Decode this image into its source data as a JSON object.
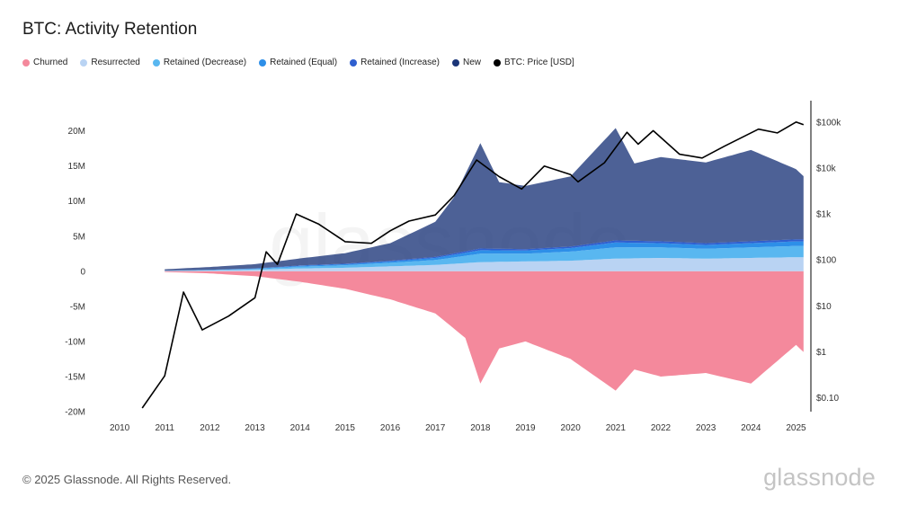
{
  "title": "BTC: Activity Retention",
  "footer": {
    "copyright": "© 2025 Glassnode. All Rights Reserved.",
    "logo": "glassnode",
    "watermark": "glassnode"
  },
  "legend": [
    {
      "label": "Churned",
      "color": "#f4899c"
    },
    {
      "label": "Resurrected",
      "color": "#b9d3f3"
    },
    {
      "label": "Retained (Decrease)",
      "color": "#59b7f0"
    },
    {
      "label": "Retained (Equal)",
      "color": "#2d8fe8"
    },
    {
      "label": "Retained (Increase)",
      "color": "#2f5fcf"
    },
    {
      "label": "New",
      "color": "#1b3578"
    },
    {
      "label": "BTC: Price [USD]",
      "color": "#000000"
    }
  ],
  "chart_data": {
    "type": "area",
    "x_ticks": [
      "2010",
      "2011",
      "2012",
      "2013",
      "2014",
      "2015",
      "2016",
      "2017",
      "2018",
      "2019",
      "2020",
      "2021",
      "2022",
      "2023",
      "2024",
      "2025"
    ],
    "y_left": {
      "ticks": [
        "20M",
        "15M",
        "10M",
        "5M",
        "0",
        "-5M",
        "-10M",
        "-15M",
        "-20M"
      ],
      "range": [
        -20000000,
        22000000
      ]
    },
    "y_right": {
      "scale": "log",
      "ticks": [
        "$100k",
        "$10k",
        "$1k",
        "$100",
        "$10",
        "$1",
        "$0.10"
      ],
      "range": [
        0.05,
        130000
      ]
    },
    "x_range": [
      "2009-07-01",
      "2025-04-01"
    ],
    "series": [
      {
        "name": "Churned",
        "color": "#f4899c",
        "x": [
          "2011-01",
          "2012-01",
          "2013-01",
          "2014-01",
          "2015-01",
          "2016-01",
          "2017-01",
          "2017-09",
          "2018-01",
          "2018-06",
          "2019-01",
          "2020-01",
          "2021-01",
          "2021-06",
          "2022-01",
          "2023-01",
          "2024-01",
          "2025-01",
          "2025-03"
        ],
        "values": [
          -100000,
          -300000,
          -700000,
          -1500000,
          -2500000,
          -4000000,
          -6000000,
          -9500000,
          -16000000,
          -11000000,
          -10000000,
          -12500000,
          -17000000,
          -14000000,
          -15000000,
          -14500000,
          -16000000,
          -10500000,
          -11500000
        ]
      },
      {
        "name": "Resurrected",
        "color": "#b9d3f3",
        "x": [
          "2011-01",
          "2012-01",
          "2013-01",
          "2014-01",
          "2015-01",
          "2016-01",
          "2017-01",
          "2018-01",
          "2019-01",
          "2020-01",
          "2021-01",
          "2022-01",
          "2023-01",
          "2024-01",
          "2025-01",
          "2025-03"
        ],
        "values": [
          50000,
          100000,
          200000,
          400000,
          500000,
          700000,
          900000,
          1300000,
          1400000,
          1500000,
          1800000,
          1900000,
          1800000,
          1900000,
          2000000,
          2000000
        ]
      },
      {
        "name": "Retained (Decrease)",
        "color": "#59b7f0",
        "x": [
          "2011-01",
          "2012-01",
          "2013-01",
          "2014-01",
          "2015-01",
          "2016-01",
          "2017-01",
          "2018-01",
          "2019-01",
          "2020-01",
          "2021-01",
          "2022-01",
          "2023-01",
          "2024-01",
          "2025-01",
          "2025-03"
        ],
        "values": [
          20000,
          60000,
          120000,
          250000,
          350000,
          500000,
          700000,
          1200000,
          1100000,
          1300000,
          1600000,
          1500000,
          1400000,
          1500000,
          1600000,
          1600000
        ]
      },
      {
        "name": "Retained (Equal)",
        "color": "#2d8fe8",
        "x": [
          "2011-01",
          "2012-01",
          "2013-01",
          "2014-01",
          "2015-01",
          "2016-01",
          "2017-01",
          "2018-01",
          "2019-01",
          "2020-01",
          "2021-01",
          "2022-01",
          "2023-01",
          "2024-01",
          "2025-01",
          "2025-03"
        ],
        "values": [
          10000,
          30000,
          60000,
          120000,
          150000,
          200000,
          300000,
          500000,
          450000,
          500000,
          700000,
          600000,
          550000,
          600000,
          650000,
          650000
        ]
      },
      {
        "name": "Retained (Increase)",
        "color": "#2f5fcf",
        "x": [
          "2011-01",
          "2012-01",
          "2013-01",
          "2014-01",
          "2015-01",
          "2016-01",
          "2017-01",
          "2018-01",
          "2019-01",
          "2020-01",
          "2021-01",
          "2022-01",
          "2023-01",
          "2024-01",
          "2025-01",
          "2025-03"
        ],
        "values": [
          5000,
          15000,
          30000,
          60000,
          80000,
          100000,
          150000,
          250000,
          200000,
          220000,
          300000,
          280000,
          250000,
          280000,
          300000,
          300000
        ]
      },
      {
        "name": "New",
        "color": "#1b3578",
        "x": [
          "2011-01",
          "2012-01",
          "2013-01",
          "2014-01",
          "2015-01",
          "2016-01",
          "2017-01",
          "2017-06",
          "2018-01",
          "2018-06",
          "2019-01",
          "2020-01",
          "2021-01",
          "2021-06",
          "2022-01",
          "2023-01",
          "2024-01",
          "2025-01",
          "2025-03"
        ],
        "values": [
          200000,
          400000,
          600000,
          1000000,
          1500000,
          2500000,
          5000000,
          8000000,
          15000000,
          9500000,
          9000000,
          10000000,
          16000000,
          11000000,
          12000000,
          11500000,
          13000000,
          10000000,
          9000000
        ]
      },
      {
        "name": "BTC: Price [USD]",
        "color": "#000000",
        "x": [
          "2010-07",
          "2011-01",
          "2011-06",
          "2011-11",
          "2012-06",
          "2013-01",
          "2013-04",
          "2013-07",
          "2013-12",
          "2014-06",
          "2015-01",
          "2015-08",
          "2016-01",
          "2016-06",
          "2017-01",
          "2017-06",
          "2017-12",
          "2018-06",
          "2018-12",
          "2019-06",
          "2020-01",
          "2020-03",
          "2020-10",
          "2021-04",
          "2021-07",
          "2021-11",
          "2022-06",
          "2022-12",
          "2023-06",
          "2024-03",
          "2024-08",
          "2025-01",
          "2025-03"
        ],
        "values": [
          0.06,
          0.3,
          20,
          3,
          6,
          15,
          150,
          80,
          1000,
          600,
          250,
          230,
          430,
          700,
          950,
          2500,
          15000,
          6500,
          3500,
          11000,
          7200,
          5000,
          13000,
          60000,
          33000,
          65000,
          20000,
          16500,
          30000,
          70000,
          58000,
          100000,
          88000
        ]
      }
    ]
  }
}
